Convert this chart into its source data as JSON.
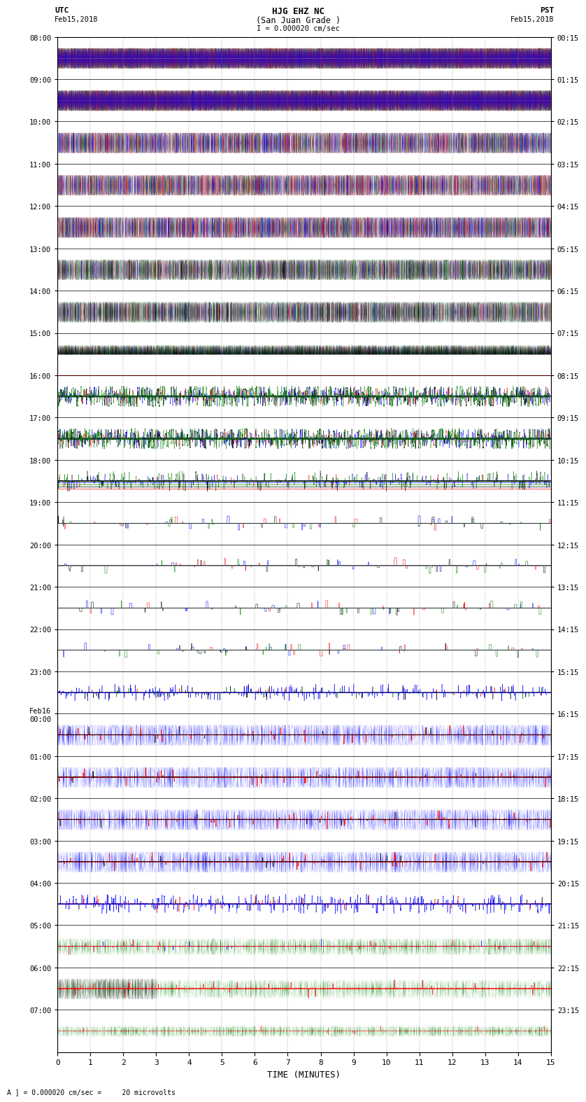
{
  "title_line1": "HJG EHZ NC",
  "title_line2": "(San Juan Grade )",
  "scale_label": "I = 0.000020 cm/sec",
  "bottom_label": "TIME (MINUTES)",
  "bottom_note": "A ] = 0.000020 cm/sec =     20 microvolts",
  "left_times_utc": [
    "08:00",
    "09:00",
    "10:00",
    "11:00",
    "12:00",
    "13:00",
    "14:00",
    "15:00",
    "16:00",
    "17:00",
    "18:00",
    "19:00",
    "20:00",
    "21:00",
    "22:00",
    "23:00",
    "Feb16\n00:00",
    "01:00",
    "02:00",
    "03:00",
    "04:00",
    "05:00",
    "06:00",
    "07:00"
  ],
  "right_times_pst": [
    "00:15",
    "01:15",
    "02:15",
    "03:15",
    "04:15",
    "05:15",
    "06:15",
    "07:15",
    "08:15",
    "09:15",
    "10:15",
    "11:15",
    "12:15",
    "13:15",
    "14:15",
    "15:15",
    "16:15",
    "17:15",
    "18:15",
    "19:15",
    "20:15",
    "21:15",
    "22:15",
    "23:15"
  ],
  "num_rows": 24,
  "xmin": 0,
  "xmax": 15,
  "xticks": [
    0,
    1,
    2,
    3,
    4,
    5,
    6,
    7,
    8,
    9,
    10,
    11,
    12,
    13,
    14,
    15
  ],
  "bg_color": "#ffffff",
  "seed": 42,
  "row_descriptions": [
    "saturated_mixed",
    "saturated_mixed",
    "saturated_red_blue",
    "saturated_red",
    "saturated_red_blue",
    "saturated_green_black",
    "saturated_green_black",
    "transition_green_black",
    "spiky_multi",
    "spiky_multi",
    "spiky_green_black",
    "quiet_spiky",
    "quiet_spiky",
    "quiet_spiky",
    "quiet_spiky",
    "quiet_blue_spiky",
    "blue_saturated",
    "blue_saturated",
    "blue_saturated",
    "blue_saturated",
    "blue_quiet",
    "green_dense",
    "black_green_mixed",
    "green_quiet"
  ]
}
